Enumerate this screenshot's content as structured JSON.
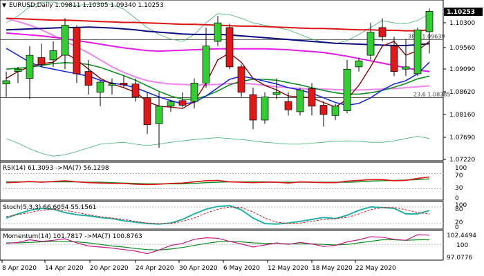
{
  "header": {
    "title_line": "EURUSD,Daily  1.09811 1.10305 1.09340 1.10253"
  },
  "price_panel": {
    "axis_ticks": [
      "1.10300",
      "1.09560",
      "1.09090",
      "1.08620",
      "1.08160",
      "1.07690",
      "1.07220"
    ],
    "current_price": "1.10253",
    "fib_382_label": "38.2 1.09639",
    "fib_236_label": "23.6 1.08385"
  },
  "rsi_panel": {
    "label": "RSI(14) 61.3093  ->MA(7) 56.1298",
    "axis_ticks": [
      "100",
      "70",
      "30",
      "0"
    ]
  },
  "stoch_panel": {
    "label": "Stoch(5,3,3) 66.6054 55.1561",
    "axis_ticks": [
      "100",
      "80",
      "20",
      "0"
    ]
  },
  "momentum_panel": {
    "label": "Momentum(14) 101.7817  ->MA(7) 100.8763",
    "axis_ticks": [
      "102.4494",
      "100",
      "97.0776"
    ]
  },
  "x_axis_labels": [
    "8 Apr 2020",
    "14 Apr 2020",
    "20 Apr 2020",
    "24 Apr 2020",
    "30 Apr 2020",
    "6 May 2020",
    "12 May 2020",
    "18 May 2020",
    "22 May 2020"
  ],
  "colors": {
    "bull": "#32cd32",
    "bear": "#e01818",
    "red_ma": "#dc1414",
    "navy_ma": "#0a0a80",
    "magenta_ma": "#e619e6",
    "pink_ma": "#ee82ee",
    "green_ma": "#0a8c1e",
    "maroon_ma": "#8b0000",
    "blue_ma": "#1428e6",
    "bb": "#3cb371"
  },
  "chart_data": {
    "type": "candlestick",
    "symbol": "EURUSD",
    "timeframe": "Daily",
    "ylim": [
      1.0705,
      1.1045
    ],
    "fib_levels": [
      {
        "label": "38.2",
        "value": 1.09639
      },
      {
        "label": "23.6",
        "value": 1.08385
      }
    ],
    "candles": [
      {
        "o": 1.0868,
        "h": 1.0895,
        "l": 1.084,
        "c": 1.0875
      },
      {
        "o": 1.0895,
        "h": 1.0905,
        "l": 1.087,
        "c": 1.09
      },
      {
        "o": 1.088,
        "h": 1.095,
        "l": 1.0835,
        "c": 1.093
      },
      {
        "o": 1.0925,
        "h": 1.0955,
        "l": 1.0905,
        "c": 1.091
      },
      {
        "o": 1.092,
        "h": 1.096,
        "l": 1.0905,
        "c": 1.094
      },
      {
        "o": 1.093,
        "h": 1.101,
        "l": 1.09,
        "c": 1.0995
      },
      {
        "o": 1.099,
        "h": 1.0995,
        "l": 1.087,
        "c": 1.089
      },
      {
        "o": 1.0895,
        "h": 1.092,
        "l": 1.0845,
        "c": 1.0865
      },
      {
        "o": 1.085,
        "h": 1.0875,
        "l": 1.082,
        "c": 1.0872
      },
      {
        "o": 1.0865,
        "h": 1.088,
        "l": 1.0845,
        "c": 1.0868
      },
      {
        "o": 1.087,
        "h": 1.0885,
        "l": 1.086,
        "c": 1.0866
      },
      {
        "o": 1.0868,
        "h": 1.088,
        "l": 1.083,
        "c": 1.084
      },
      {
        "o": 1.0838,
        "h": 1.085,
        "l": 1.076,
        "c": 1.078
      },
      {
        "o": 1.0782,
        "h": 1.085,
        "l": 1.073,
        "c": 1.082
      },
      {
        "o": 1.082,
        "h": 1.0832,
        "l": 1.0808,
        "c": 1.083
      },
      {
        "o": 1.0832,
        "h": 1.085,
        "l": 1.0818,
        "c": 1.0822
      },
      {
        "o": 1.083,
        "h": 1.088,
        "l": 1.0815,
        "c": 1.087
      },
      {
        "o": 1.087,
        "h": 1.099,
        "l": 1.086,
        "c": 1.095
      },
      {
        "o": 1.096,
        "h": 1.1015,
        "l": 1.095,
        "c": 1.1
      },
      {
        "o": 1.099,
        "h": 1.0998,
        "l": 1.09,
        "c": 1.0905
      },
      {
        "o": 1.0905,
        "h": 1.091,
        "l": 1.084,
        "c": 1.085
      },
      {
        "o": 1.0845,
        "h": 1.086,
        "l": 1.077,
        "c": 1.079
      },
      {
        "o": 1.079,
        "h": 1.085,
        "l": 1.0782,
        "c": 1.084
      },
      {
        "o": 1.0845,
        "h": 1.088,
        "l": 1.0835,
        "c": 1.085
      },
      {
        "o": 1.083,
        "h": 1.085,
        "l": 1.08,
        "c": 1.0812
      },
      {
        "o": 1.0808,
        "h": 1.086,
        "l": 1.08,
        "c": 1.0855
      },
      {
        "o": 1.0858,
        "h": 1.087,
        "l": 1.08,
        "c": 1.082
      },
      {
        "o": 1.0822,
        "h": 1.083,
        "l": 1.0776,
        "c": 1.0802
      },
      {
        "o": 1.08,
        "h": 1.0825,
        "l": 1.079,
        "c": 1.082
      },
      {
        "o": 1.081,
        "h": 1.092,
        "l": 1.0805,
        "c": 1.09
      },
      {
        "o": 1.0905,
        "h": 1.0925,
        "l": 1.0895,
        "c": 1.0918
      },
      {
        "o": 1.093,
        "h": 1.1,
        "l": 1.092,
        "c": 1.098
      },
      {
        "o": 1.099,
        "h": 1.101,
        "l": 1.096,
        "c": 1.097
      },
      {
        "o": 1.095,
        "h": 1.097,
        "l": 1.0885,
        "c": 1.0895
      },
      {
        "o": 1.09,
        "h": 1.0965,
        "l": 1.0885,
        "c": 1.0905
      },
      {
        "o": 1.089,
        "h": 1.099,
        "l": 1.0885,
        "c": 1.0985
      },
      {
        "o": 1.0981,
        "h": 1.1031,
        "l": 1.0934,
        "c": 1.1025
      }
    ],
    "indicators": {
      "red_ma": [
        1.101,
        1.1009,
        1.1008,
        1.1007,
        1.1006,
        1.1006,
        1.1005,
        1.1004,
        1.1003,
        1.1002,
        1.1001,
        1.1001,
        1.1,
        1.0999,
        1.0998,
        1.0997,
        1.0997,
        1.0996,
        1.0995,
        1.0994,
        1.0993,
        1.0993,
        1.0992,
        1.0991,
        1.099,
        1.0989,
        1.0988,
        1.0988,
        1.0987,
        1.0986,
        1.0985,
        1.0985,
        1.0984,
        1.0984,
        1.0983,
        1.0983,
        1.0985
      ],
      "navy_ma": [
        1.0985,
        1.0986,
        1.0987,
        1.0988,
        1.0989,
        1.099,
        1.099,
        1.0991,
        1.099,
        1.0989,
        1.0987,
        1.0985,
        1.0982,
        1.098,
        1.0978,
        1.0976,
        1.0975,
        1.0975,
        1.0975,
        1.0974,
        1.0972,
        1.097,
        1.0968,
        1.0966,
        1.0964,
        1.0962,
        1.096,
        1.0958,
        1.0956,
        1.0955,
        1.0954,
        1.0953,
        1.0952,
        1.0951,
        1.0951,
        1.0953,
        1.0955
      ],
      "magenta_ma": [
        1.0978,
        1.0976,
        1.0974,
        1.0972,
        1.0969,
        1.0966,
        1.0962,
        1.0958,
        1.0954,
        1.095,
        1.0946,
        1.0943,
        1.094,
        1.0939,
        1.094,
        1.0941,
        1.0942,
        1.0943,
        1.0944,
        1.0944,
        1.0944,
        1.0944,
        1.0944,
        1.0943,
        1.0942,
        1.094,
        1.0938,
        1.0936,
        1.0932,
        1.0928,
        1.0923,
        1.0918,
        1.0913,
        1.0908,
        1.0903,
        1.0898,
        1.0895
      ],
      "pink_ma": [
        1.101,
        1.1003,
        1.0995,
        1.0985,
        1.0973,
        1.096,
        1.0948,
        1.0935,
        1.092,
        1.0905,
        1.0893,
        1.0883,
        1.0875,
        1.0871,
        1.0868,
        1.0867,
        1.0866,
        1.0866,
        1.0867,
        1.0869,
        1.087,
        1.0868,
        1.0865,
        1.0862,
        1.086,
        1.0858,
        1.0857,
        1.0857,
        1.0856,
        1.0855,
        1.0855,
        1.0856,
        1.0857,
        1.0858,
        1.086,
        1.0862,
        1.0864
      ],
      "green_ma": [
        1.09,
        1.0902,
        1.0904,
        1.0908,
        1.0912,
        1.0914,
        1.0913,
        1.091,
        1.0904,
        1.0895,
        1.0886,
        1.0876,
        1.0864,
        1.0852,
        1.0842,
        1.0835,
        1.0835,
        1.0842,
        1.0853,
        1.0866,
        1.0874,
        1.0878,
        1.0878,
        1.0876,
        1.0871,
        1.0866,
        1.086,
        1.0854,
        1.0849,
        1.0846,
        1.0846,
        1.0849,
        1.0854,
        1.0861,
        1.0869,
        1.0879,
        1.0885
      ],
      "maroon_ma": [
        1.088,
        1.0895,
        1.0905,
        1.0912,
        1.0915,
        1.0935,
        1.092,
        1.09,
        1.088,
        1.0868,
        1.086,
        1.085,
        1.083,
        1.082,
        1.0818,
        1.0815,
        1.083,
        1.087,
        1.092,
        1.0935,
        1.0915,
        1.088,
        1.0865,
        1.0855,
        1.0842,
        1.084,
        1.0838,
        1.0828,
        1.0818,
        1.0835,
        1.0865,
        1.0905,
        1.095,
        1.096,
        1.093,
        1.094,
        1.096
      ],
      "blue_ma": [
        1.0945,
        1.093,
        1.0915,
        1.0905,
        1.09,
        1.0895,
        1.089,
        1.0885,
        1.0876,
        1.087,
        1.0866,
        1.086,
        1.085,
        1.084,
        1.0832,
        1.0825,
        1.0828,
        1.0842,
        1.086,
        1.0878,
        1.0885,
        1.088,
        1.0874,
        1.0868,
        1.086,
        1.0855,
        1.0848,
        1.0838,
        1.0828,
        1.0822,
        1.0826,
        1.0838,
        1.0855,
        1.0868,
        1.0875,
        1.089,
        1.0915
      ],
      "bb_upper": [
        1.1,
        1.1015,
        1.1035,
        1.1045,
        1.1045,
        1.104,
        1.1038,
        1.104,
        1.1042,
        1.104,
        1.103,
        1.101,
        1.099,
        1.0975,
        1.0965,
        1.096,
        1.0975,
        1.1,
        1.102,
        1.1018,
        1.101,
        1.1,
        1.0995,
        1.099,
        1.0985,
        1.0975,
        1.0965,
        1.0958,
        1.0955,
        1.0962,
        1.0975,
        1.099,
        1.1005,
        1.1,
        1.0998,
        1.1005,
        1.102
      ],
      "bb_lower": [
        1.075,
        1.074,
        1.0728,
        1.0718,
        1.0712,
        1.0715,
        1.0722,
        1.073,
        1.0738,
        1.074,
        1.0742,
        1.0738,
        1.0735,
        1.0738,
        1.0742,
        1.0745,
        1.0748,
        1.075,
        1.0752,
        1.075,
        1.0748,
        1.0745,
        1.0742,
        1.074,
        1.0738,
        1.0738,
        1.074,
        1.0742,
        1.0744,
        1.0745,
        1.0744,
        1.0742,
        1.0742,
        1.0745,
        1.075,
        1.0755,
        1.075
      ],
      "rsi": [
        46,
        47,
        49,
        47,
        49,
        51,
        48,
        46,
        45,
        44,
        44,
        42,
        41,
        42,
        44,
        45,
        48,
        51,
        52,
        48,
        47,
        46,
        47,
        47,
        45,
        48,
        47,
        46,
        46,
        50,
        52,
        54,
        54,
        51,
        52,
        57,
        61
      ],
      "rsi_ma": [
        48,
        48,
        48,
        48,
        48,
        48,
        48,
        47,
        47,
        46,
        45,
        44,
        43,
        43,
        43,
        43,
        44,
        46,
        47,
        48,
        48,
        48,
        48,
        47,
        47,
        47,
        47,
        47,
        47,
        47,
        48,
        50,
        51,
        52,
        53,
        54,
        56
      ],
      "stoch_k": [
        40,
        55,
        68,
        75,
        72,
        60,
        52,
        48,
        42,
        38,
        30,
        25,
        20,
        18,
        22,
        35,
        55,
        72,
        82,
        85,
        70,
        40,
        20,
        18,
        22,
        28,
        35,
        42,
        38,
        50,
        68,
        80,
        78,
        75,
        55,
        55,
        67
      ],
      "stoch_d": [
        45,
        52,
        60,
        68,
        72,
        68,
        60,
        52,
        45,
        40,
        35,
        28,
        22,
        20,
        20,
        28,
        40,
        58,
        72,
        80,
        78,
        62,
        40,
        25,
        20,
        22,
        28,
        35,
        38,
        42,
        55,
        70,
        78,
        78,
        70,
        60,
        55
      ],
      "momentum": [
        100.2,
        100.4,
        100.9,
        100.6,
        100.8,
        101.1,
        100.3,
        99.7,
        99.5,
        99.3,
        99.0,
        98.7,
        98.2,
        98.9,
        99.8,
        100.2,
        101.0,
        101.3,
        101.2,
        100.6,
        100.1,
        99.5,
        99.9,
        100.3,
        100.0,
        100.4,
        100.1,
        99.6,
        99.8,
        100.5,
        100.9,
        101.5,
        101.4,
        101.0,
        100.8,
        101.9,
        101.8
      ],
      "momentum_ma": [
        100.3,
        100.3,
        100.4,
        100.5,
        100.6,
        100.6,
        100.5,
        100.3,
        100.0,
        99.7,
        99.5,
        99.2,
        99.0,
        98.9,
        99.1,
        99.4,
        99.8,
        100.2,
        100.5,
        100.6,
        100.5,
        100.3,
        100.2,
        100.2,
        100.1,
        100.1,
        100.1,
        100.0,
        99.9,
        100.0,
        100.3,
        100.6,
        100.9,
        100.9,
        100.8,
        100.9,
        100.9
      ]
    }
  }
}
